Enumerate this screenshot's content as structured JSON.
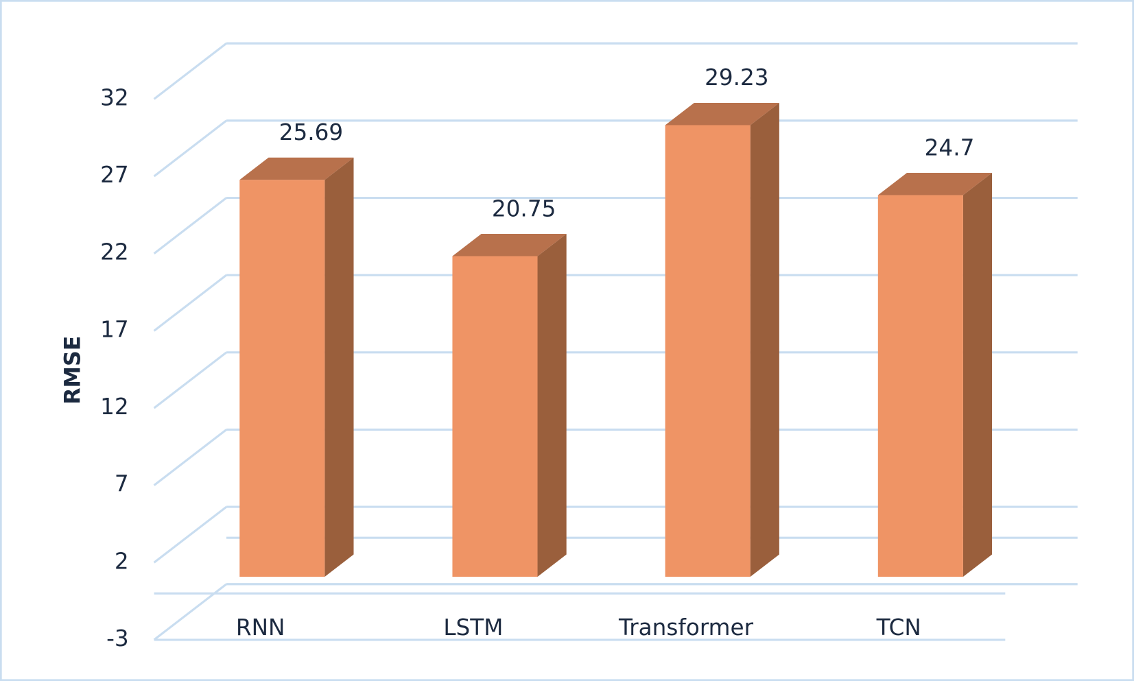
{
  "chart_data": {
    "type": "bar3d",
    "y_label": "RMSE",
    "categories": [
      "RNN",
      "LSTM",
      "Transformer",
      "TCN"
    ],
    "values": [
      25.69,
      20.75,
      29.23,
      24.7
    ],
    "color": "#ef9465",
    "ylim": [
      -3,
      32
    ],
    "yticks": [
      -3,
      2,
      7,
      12,
      17,
      22,
      27,
      32
    ],
    "grid": true
  }
}
